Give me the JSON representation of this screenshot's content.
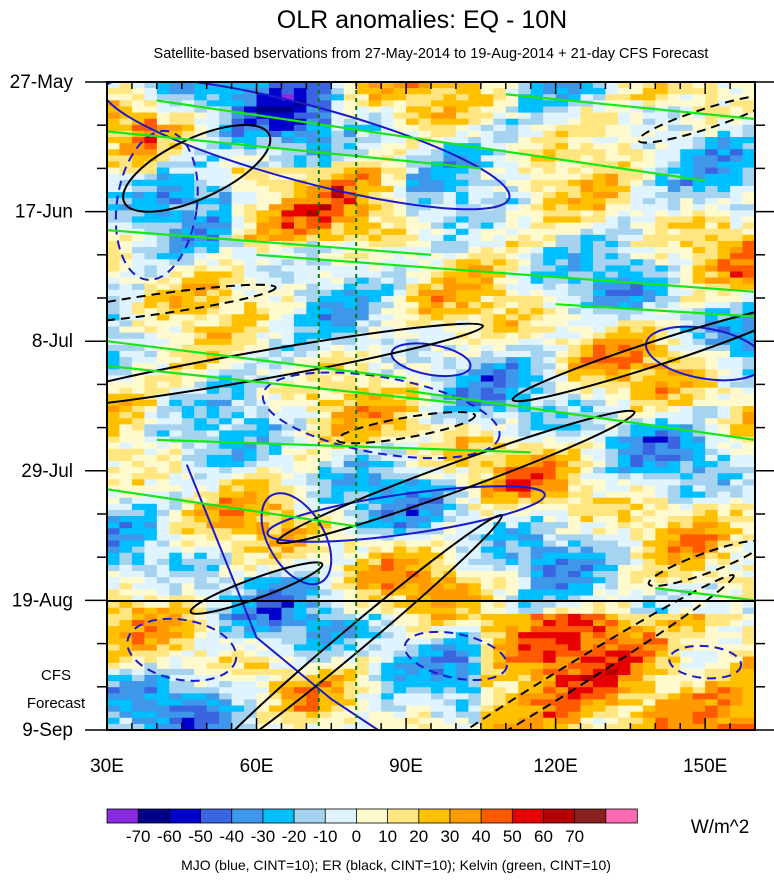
{
  "chart_data": {
    "type": "heatmap",
    "title": "OLR anomalies: EQ - 10N",
    "subtitle": "Satellite-based bservations from 27-May-2014 to 19-Aug-2014 + 21-day CFS Forecast",
    "x_axis": {
      "ticks": [
        30,
        60,
        90,
        120,
        150
      ],
      "tick_labels": [
        "30E",
        "60E",
        "90E",
        "120E",
        "150E"
      ],
      "range": [
        30,
        160
      ],
      "unit": "degrees longitude"
    },
    "y_axis": {
      "tick_labels": [
        "27-May",
        "17-Jun",
        "8-Jul",
        "29-Jul",
        "19-Aug",
        "9-Sep"
      ],
      "tick_dates": [
        "2014-05-27",
        "2014-06-17",
        "2014-07-08",
        "2014-07-29",
        "2014-08-19",
        "2014-09-09"
      ],
      "range": [
        "2014-05-27",
        "2014-09-09"
      ],
      "direction": "time increases downward"
    },
    "observation_end": "2014-08-19",
    "forecast_label": [
      "CFS",
      "Forecast"
    ],
    "reference_longitudes": [
      72.5,
      80
    ],
    "colorbar": {
      "levels": [
        -70,
        -60,
        -50,
        -40,
        -30,
        -20,
        -10,
        0,
        10,
        20,
        30,
        40,
        50,
        60,
        70
      ],
      "unit": "W/m^2",
      "colors": [
        "#8a2be2",
        "#00008b",
        "#0000cd",
        "#3a64e0",
        "#3f97ea",
        "#00bfff",
        "#a6d4f0",
        "#dff4ff",
        "#fffacd",
        "#ffe680",
        "#ffc000",
        "#ff9a00",
        "#ff5a00",
        "#e60000",
        "#b40000",
        "#8b2020",
        "#ff69b4"
      ]
    },
    "overlays": [
      {
        "wave": "MJO",
        "color": "#1a1acd",
        "cint": 10
      },
      {
        "wave": "ER",
        "color": "#000000",
        "cint": 10
      },
      {
        "wave": "Kelvin",
        "color": "#19e619",
        "cint": 10
      }
    ],
    "footer": "MJO (blue, CINT=10); ER (black, CINT=10); Kelvin (green, CINT=10)"
  }
}
